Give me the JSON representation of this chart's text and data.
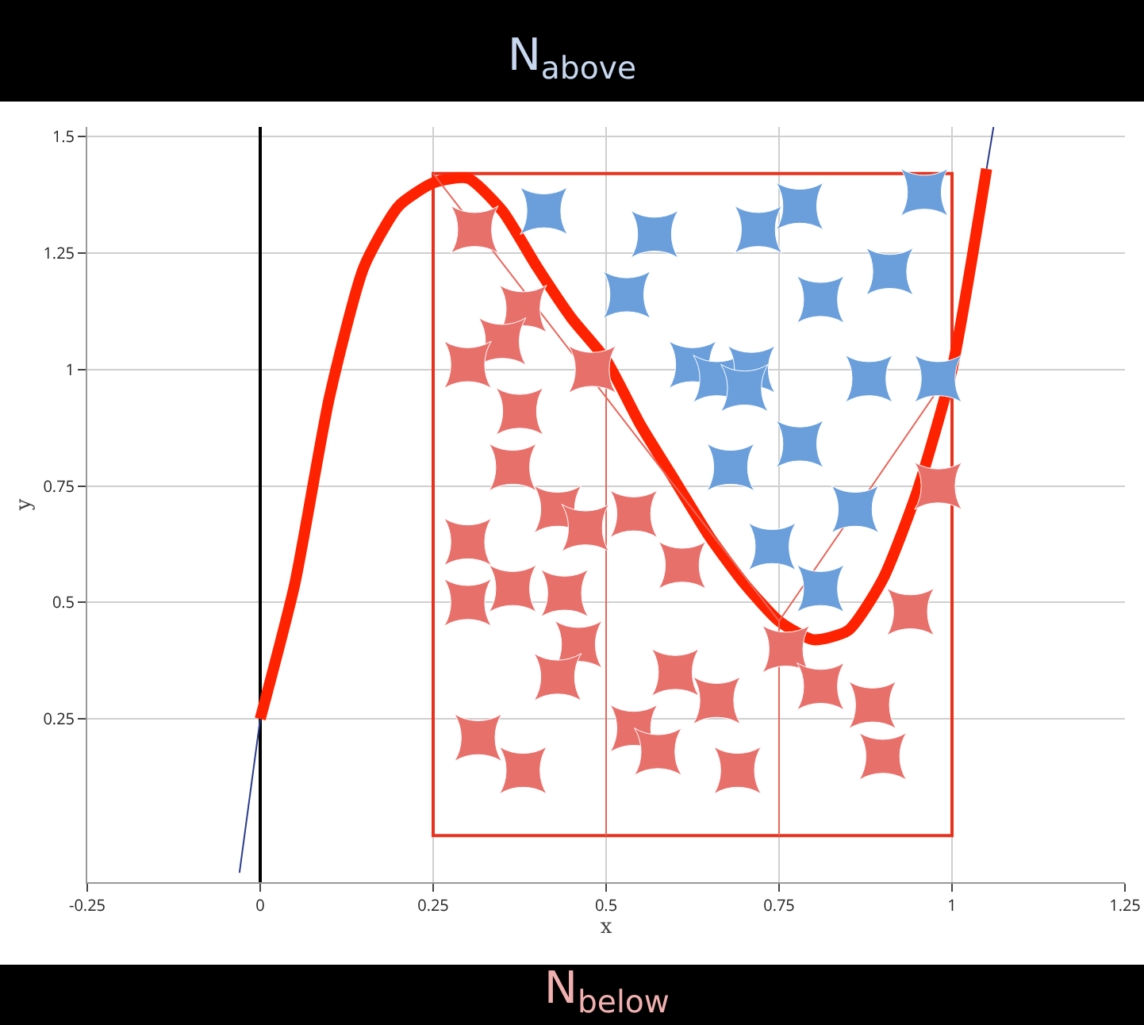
{
  "chart_data": {
    "type": "line",
    "title": "N$_{above}$",
    "xlabel": "x",
    "ylabel": "y",
    "annotations": [
      "N$_{below}$"
    ],
    "xlim": [
      -0.25,
      1.25
    ],
    "ylim": [
      -0.1,
      1.52
    ],
    "xticks": [
      -0.25,
      0,
      0.25,
      0.5,
      0.75,
      1,
      1.25
    ],
    "yticks": [
      0.25,
      0.5,
      0.75,
      1,
      1.25,
      1.5
    ],
    "grid": true,
    "series": [
      {
        "color": "#ff2200",
        "x": [
          0,
          0.05,
          0.1,
          0.15,
          0.2,
          0.25,
          0.3,
          0.35,
          0.4,
          0.45,
          0.5,
          0.55,
          0.6,
          0.65,
          0.7,
          0.75,
          0.8,
          0.85,
          0.9,
          0.95,
          1,
          1.05
        ],
        "values": [
          0.25,
          0.54,
          0.94,
          1.22,
          1.35,
          1.4,
          1.41,
          1.34,
          1.22,
          1.11,
          1.02,
          0.88,
          0.76,
          0.64,
          0.54,
          0.46,
          0.42,
          0.44,
          0.55,
          0.74,
          1,
          1.43
        ]
      },
      {
        "color": "#e8665a",
        "x": [
          0.25,
          0.75,
          1,
          null,
          0.5,
          0.5,
          null,
          0.75,
          0.75
        ],
        "values": [
          1.42,
          0.46,
          1,
          null,
          0,
          1,
          null,
          0,
          0.46
        ]
      },
      {
        "type": "histogram",
        "color": "#e8321e",
        "bins": [
          0.25,
          1
        ],
        "values": [
          1.42
        ]
      },
      {
        "color": "#2a3c8c",
        "x": [
          -0.03,
          0,
          null,
          1.05,
          1.06
        ],
        "values": [
          -0.08,
          0.25,
          null,
          1.43,
          1.52
        ]
      },
      {
        "type": "scatter",
        "marker": "star",
        "color": "#6a9fdc",
        "x": [
          0.41,
          0.57,
          0.53,
          0.72,
          0.78,
          0.96,
          0.91,
          0.81,
          0.625,
          0.66,
          0.71,
          0.7,
          0.88,
          0.98,
          0.68,
          0.78,
          0.86,
          0.74,
          0.81
        ],
        "values": [
          1.34,
          1.29,
          1.16,
          1.3,
          1.35,
          1.38,
          1.21,
          1.15,
          1.01,
          0.98,
          1,
          0.96,
          0.98,
          0.98,
          0.79,
          0.84,
          0.7,
          0.62,
          0.53
        ]
      },
      {
        "type": "scatter",
        "marker": "star",
        "color": "#e8706b",
        "x": [
          0.31,
          0.38,
          0.35,
          0.3,
          0.48,
          0.375,
          0.365,
          0.43,
          0.47,
          0.54,
          0.3,
          0.61,
          0.365,
          0.44,
          0.3,
          0.46,
          0.43,
          0.6,
          0.66,
          0.76,
          0.81,
          0.885,
          0.9,
          0.94,
          0.98,
          0.54,
          0.575,
          0.69,
          0.315,
          0.38
        ],
        "values": [
          1.3,
          1.13,
          1.06,
          1.01,
          1,
          0.91,
          0.79,
          0.7,
          0.66,
          0.69,
          0.63,
          0.58,
          0.53,
          0.52,
          0.5,
          0.41,
          0.34,
          0.35,
          0.29,
          0.4,
          0.32,
          0.28,
          0.17,
          0.48,
          0.75,
          0.23,
          0.18,
          0.14,
          0.21,
          0.14
        ]
      }
    ]
  }
}
